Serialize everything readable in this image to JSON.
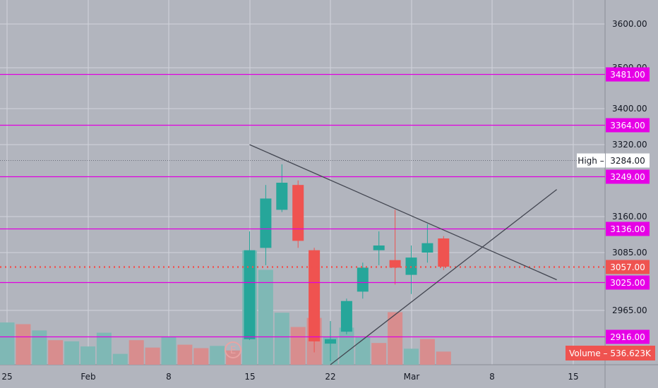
{
  "chart_data": {
    "type": "candlestick",
    "colors": {
      "background": "#b2b5be",
      "grid": "#d1d4dc",
      "up": "#26a69a",
      "down": "#ef5350",
      "up_volume": "#7fb8b5",
      "down_volume": "#d88d8e",
      "level_line": "#e000e0",
      "level_tag": "#e600e6",
      "trendline": "#434651",
      "current_price_line": "#ef5350",
      "high_line": "#6a6d78",
      "axis_text": "#131722"
    },
    "y_ticks": [
      "3600.00",
      "3500.00",
      "3400.00",
      "3320.00",
      "3160.00",
      "3085.00",
      "2965.00"
    ],
    "x_ticks": [
      "25",
      "Feb",
      "8",
      "15",
      "22",
      "Mar",
      "8",
      "15"
    ],
    "levels": [
      {
        "label": "3481.00",
        "value": 3481
      },
      {
        "label": "3364.00",
        "value": 3364
      },
      {
        "label": "3249.00",
        "value": 3249
      },
      {
        "label": "3136.00",
        "value": 3136
      },
      {
        "label": "3025.00",
        "value": 3025
      },
      {
        "label": "2916.00",
        "value": 2916
      }
    ],
    "current_price": {
      "label": "3057.00",
      "value": 3057
    },
    "high": {
      "label": "High",
      "price_label": "3284.00",
      "value": 3284
    },
    "volume_tag": {
      "label": "Volume",
      "separator": "–",
      "value": "536.623K"
    },
    "earnings_marker": {
      "label": "E"
    },
    "trendlines": [
      {
        "name": "descending-resistance",
        "from": {
          "date": "2021-02-15",
          "price": 3320
        },
        "to": {
          "date": "2021-03-12",
          "price": 3030
        }
      },
      {
        "name": "ascending-support",
        "from": {
          "date": "2021-02-20",
          "price": 2852
        },
        "to": {
          "date": "2021-03-12",
          "price": 3220
        }
      }
    ],
    "candles": [
      {
        "date": "2021-02-15",
        "open": 2910,
        "high": 3130,
        "low": 2908,
        "close": 3090
      },
      {
        "date": "2021-02-16",
        "open": 3095,
        "high": 3230,
        "low": 3060,
        "close": 3200
      },
      {
        "date": "2021-02-17",
        "open": 3175,
        "high": 3275,
        "low": 3170,
        "close": 3235
      },
      {
        "date": "2021-02-18",
        "open": 3230,
        "high": 3240,
        "low": 3095,
        "close": 3110
      },
      {
        "date": "2021-02-19",
        "open": 3090,
        "high": 3095,
        "low": 2880,
        "close": 2905
      },
      {
        "date": "2021-02-22",
        "open": 2900,
        "high": 2945,
        "low": 2860,
        "close": 2910
      },
      {
        "date": "2021-02-23",
        "open": 2925,
        "high": 2990,
        "low": 2920,
        "close": 2985
      },
      {
        "date": "2021-02-24",
        "open": 3005,
        "high": 3065,
        "low": 2990,
        "close": 3055
      },
      {
        "date": "2021-02-25",
        "open": 3090,
        "high": 3130,
        "low": 3060,
        "close": 3100
      },
      {
        "date": "2021-02-26",
        "open": 3070,
        "high": 3175,
        "low": 3020,
        "close": 3055
      },
      {
        "date": "2021-03-01",
        "open": 3040,
        "high": 3100,
        "low": 3000,
        "close": 3075
      },
      {
        "date": "2021-03-02",
        "open": 3085,
        "high": 3145,
        "low": 3065,
        "close": 3105
      },
      {
        "date": "2021-03-03",
        "open": 3115,
        "high": 3120,
        "low": 3050,
        "close": 3057
      }
    ],
    "volume": [
      {
        "date": "2021-01-25",
        "value": 370,
        "direction": "up"
      },
      {
        "date": "2021-01-26",
        "value": 355,
        "direction": "down"
      },
      {
        "date": "2021-01-27",
        "value": 300,
        "direction": "up"
      },
      {
        "date": "2021-01-28",
        "value": 215,
        "direction": "down"
      },
      {
        "date": "2021-01-29",
        "value": 205,
        "direction": "up"
      },
      {
        "date": "2021-02-01",
        "value": 160,
        "direction": "up"
      },
      {
        "date": "2021-02-02",
        "value": 280,
        "direction": "up"
      },
      {
        "date": "2021-02-03",
        "value": 95,
        "direction": "up"
      },
      {
        "date": "2021-02-04",
        "value": 215,
        "direction": "down"
      },
      {
        "date": "2021-02-05",
        "value": 150,
        "direction": "down"
      },
      {
        "date": "2021-02-08",
        "value": 245,
        "direction": "up"
      },
      {
        "date": "2021-02-09",
        "value": 175,
        "direction": "down"
      },
      {
        "date": "2021-02-10",
        "value": 145,
        "direction": "down"
      },
      {
        "date": "2021-02-11",
        "value": 165,
        "direction": "up"
      },
      {
        "date": "2021-02-12",
        "value": 125,
        "direction": "down"
      },
      {
        "date": "2021-02-15",
        "value": 1000,
        "direction": "up"
      },
      {
        "date": "2021-02-16",
        "value": 830,
        "direction": "up"
      },
      {
        "date": "2021-02-17",
        "value": 455,
        "direction": "up"
      },
      {
        "date": "2021-02-18",
        "value": 330,
        "direction": "down"
      },
      {
        "date": "2021-02-19",
        "value": 410,
        "direction": "down"
      },
      {
        "date": "2021-02-22",
        "value": 245,
        "direction": "up"
      },
      {
        "date": "2021-02-23",
        "value": 325,
        "direction": "up"
      },
      {
        "date": "2021-02-24",
        "value": 240,
        "direction": "up"
      },
      {
        "date": "2021-02-25",
        "value": 190,
        "direction": "down"
      },
      {
        "date": "2021-02-26",
        "value": 460,
        "direction": "down"
      },
      {
        "date": "2021-03-01",
        "value": 140,
        "direction": "up"
      },
      {
        "date": "2021-03-02",
        "value": 225,
        "direction": "down"
      },
      {
        "date": "2021-03-03",
        "value": 115,
        "direction": "down"
      }
    ]
  }
}
